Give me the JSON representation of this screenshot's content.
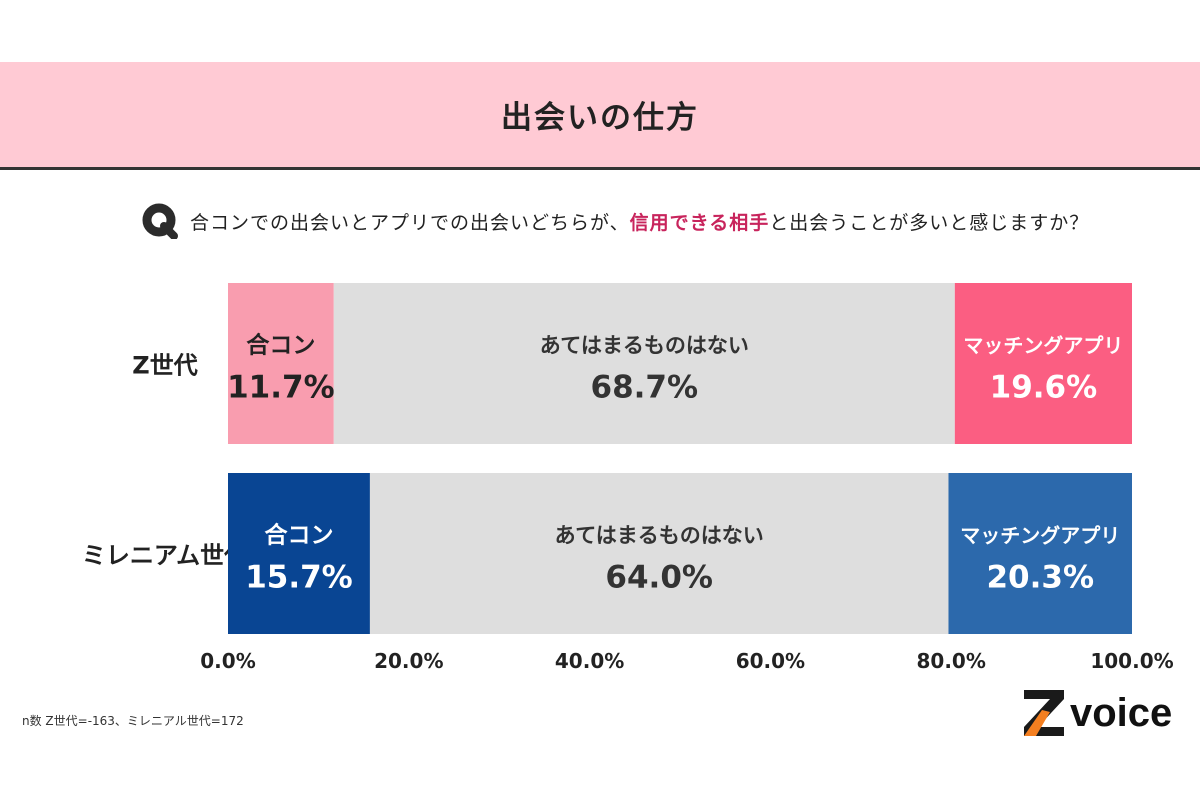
{
  "title": "出会いの仕方",
  "question": {
    "prefix": "合コンでの出会いとアプリでの出会いどちらが、",
    "highlight": "信用できる相手",
    "suffix": "と出会うことが多いと感じますか？"
  },
  "chart_data": {
    "type": "bar",
    "orientation": "horizontal-stacked-100",
    "categories": [
      "Z世代",
      "ミレニアム世代"
    ],
    "series": [
      {
        "name": "合コン",
        "values": [
          11.7,
          15.7
        ]
      },
      {
        "name": "あてはまるものはない",
        "values": [
          68.7,
          64.0
        ]
      },
      {
        "name": "マッチングアプリ",
        "values": [
          19.6,
          20.3
        ]
      }
    ],
    "value_labels": [
      [
        "11.7%",
        "68.7%",
        "19.6%"
      ],
      [
        "15.7%",
        "64.0%",
        "20.3%"
      ]
    ],
    "xlim": [
      0,
      100
    ],
    "x_ticks": [
      "0.0%",
      "20.0%",
      "40.0%",
      "60.0%",
      "80.0%",
      "100.0%"
    ],
    "grid": false,
    "colors": {
      "Z世代": [
        "#f99daf",
        "#dedede",
        "#fb5e82"
      ],
      "ミレニアム世代": [
        "#094593",
        "#dedede",
        "#2c69ac"
      ]
    },
    "label_colors": {
      "Z世代": [
        "#222222",
        "#333333",
        "#ffffff"
      ],
      "ミレニアム世代": [
        "#ffffff",
        "#333333",
        "#ffffff"
      ]
    }
  },
  "footnote": "n数 Z世代=-163、ミレニアル世代=172",
  "logo": {
    "text": "voice",
    "mark": "Z"
  }
}
